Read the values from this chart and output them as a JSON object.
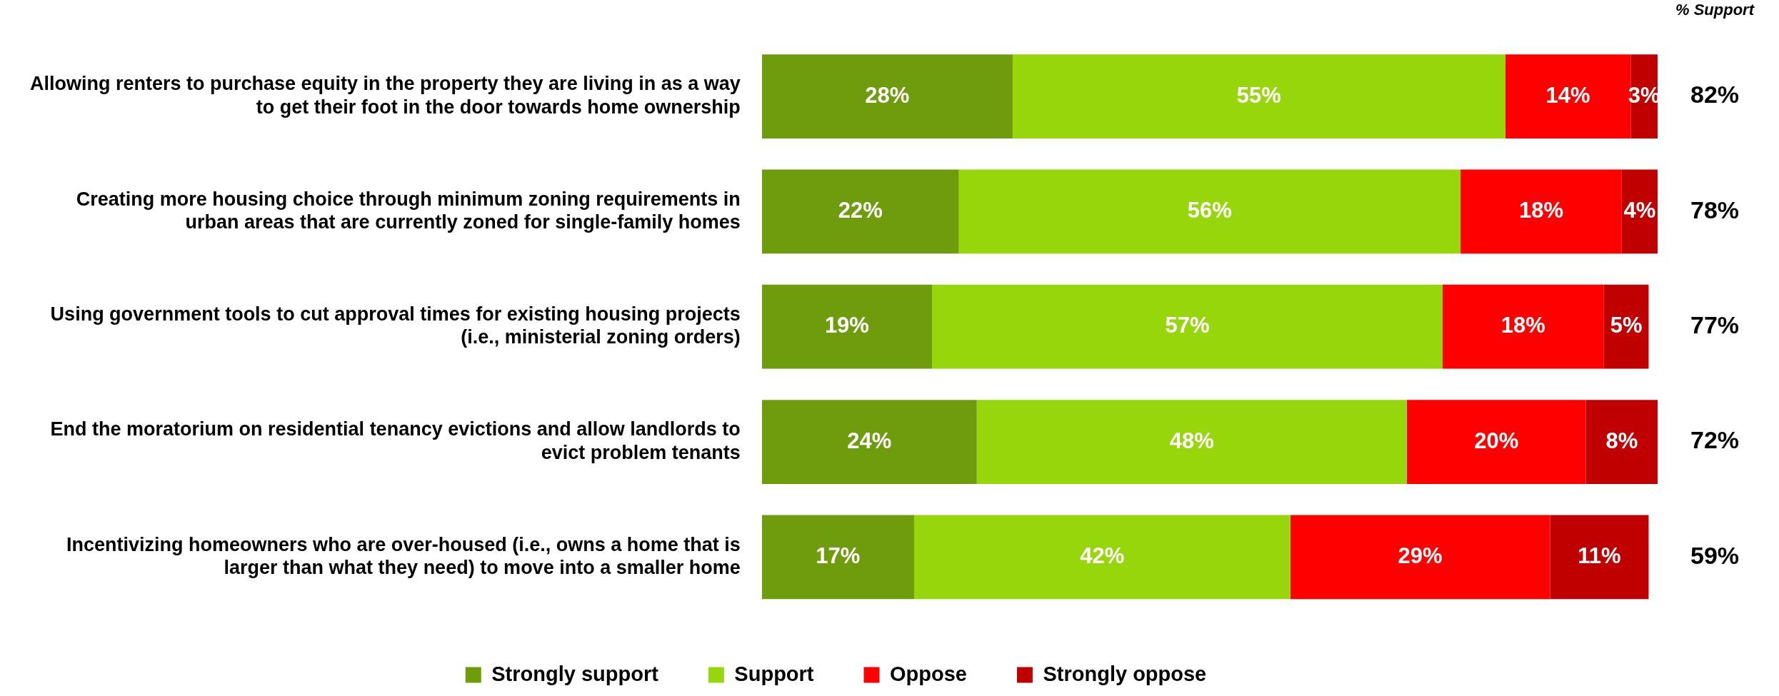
{
  "chart_data": {
    "type": "bar",
    "orientation": "horizontal",
    "stacked": true,
    "tick_labels": "y",
    "legend": "bottom",
    "categories": [
      "Allowing renters to purchase equity in the property they are living in as a way to get their foot in the door towards home ownership",
      "Creating more housing choice through minimum zoning requirements in urban areas that are currently zoned for single-family homes",
      "Using government tools to cut approval times for existing housing projects (i.e., ministerial zoning orders)",
      "End the moratorium on residential tenancy evictions and allow landlords to evict problem tenants",
      "Incentivizing homeowners who are over-housed (i.e., owns a home that is larger than what they need) to move into a smaller home"
    ],
    "series": [
      {
        "name": "Strongly support",
        "color": "#6f9c0c",
        "values": [
          28,
          22,
          19,
          24,
          17
        ],
        "value_labels": [
          "28%",
          "22%",
          "19%",
          "24%",
          "17%"
        ]
      },
      {
        "name": "Support",
        "color": "#96d60a",
        "values": [
          55,
          56,
          57,
          48,
          42
        ],
        "value_labels": [
          "55%",
          "56%",
          "57%",
          "48%",
          "42%"
        ]
      },
      {
        "name": "Oppose",
        "color": "#ff0000",
        "values": [
          14,
          18,
          18,
          20,
          29
        ],
        "value_labels": [
          "14%",
          "18%",
          "18%",
          "20%",
          "29%"
        ]
      },
      {
        "name": "Strongly oppose",
        "color": "#c00000",
        "values": [
          3,
          4,
          5,
          8,
          11
        ],
        "value_labels": [
          "3%",
          "4%",
          "5%",
          "8%",
          "11%"
        ]
      }
    ],
    "annotations": [
      "% Support",
      "82%",
      "78%",
      "77%",
      "72%",
      "59%"
    ]
  }
}
